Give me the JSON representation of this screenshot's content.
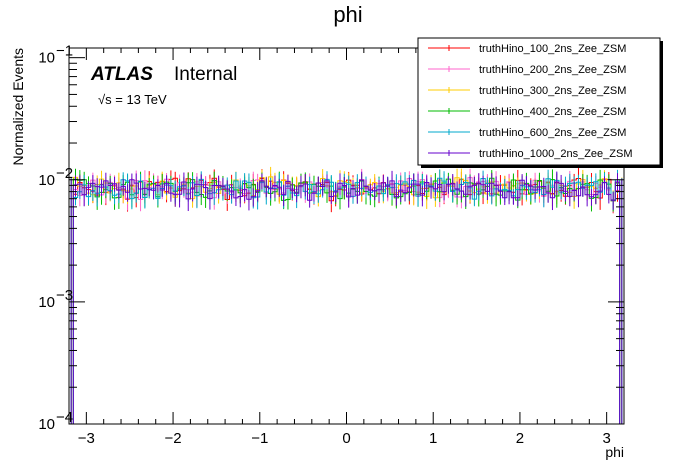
{
  "chart_data": {
    "type": "histogram",
    "title": "phi",
    "xlabel": "phi",
    "ylabel": "Normalized Events",
    "xlim": [
      -3.2,
      3.2
    ],
    "ylim": [
      0.0001,
      0.12
    ],
    "yscale": "log",
    "nbins": 128,
    "x_ticks": [
      -3,
      -2,
      -1,
      0,
      1,
      2,
      3
    ],
    "x_tick_labels": [
      "−3",
      "−2",
      "−1",
      "0",
      "1",
      "2",
      "3"
    ],
    "y_ticks": [
      0.0001,
      0.001,
      0.01,
      0.1
    ],
    "y_tick_bases": [
      "10",
      "10",
      "10",
      "10"
    ],
    "y_tick_exponents": [
      "−4",
      "−3",
      "−2",
      "−1"
    ],
    "approx_bin_value": 0.0086,
    "legend_position": "top-right",
    "series": [
      {
        "name": "truthHino_100_2ns_Zee_ZSM",
        "color": "#ff0000",
        "mean": 0.0086,
        "seed": 11
      },
      {
        "name": "truthHino_200_2ns_Zee_ZSM",
        "color": "#ff66cc",
        "mean": 0.0086,
        "seed": 23
      },
      {
        "name": "truthHino_300_2ns_Zee_ZSM",
        "color": "#ffcc00",
        "mean": 0.0087,
        "seed": 37
      },
      {
        "name": "truthHino_400_2ns_Zee_ZSM",
        "color": "#00bb00",
        "mean": 0.0085,
        "seed": 41
      },
      {
        "name": "truthHino_600_2ns_Zee_ZSM",
        "color": "#00aacc",
        "mean": 0.0086,
        "seed": 53
      },
      {
        "name": "truthHino_1000_2ns_Zee_ZSM",
        "color": "#6600cc",
        "mean": 0.0085,
        "seed": 67
      }
    ]
  },
  "annotations": {
    "experiment": "ATLAS",
    "status": "Internal",
    "energy_label": "√s = 13 TeV"
  }
}
